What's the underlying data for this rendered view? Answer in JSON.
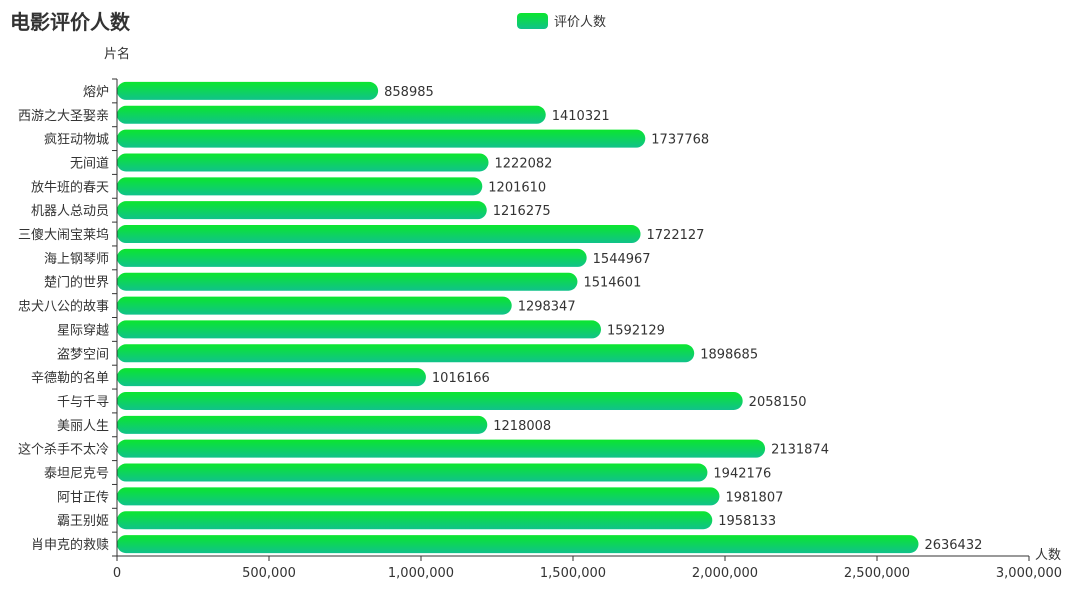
{
  "chart_data": {
    "type": "bar",
    "orientation": "horizontal",
    "title": "电影评价人数",
    "legend": {
      "entries": [
        "评价人数"
      ],
      "position": "top-center"
    },
    "xlabel": "人数",
    "ylabel": "片名",
    "xlim": [
      0,
      3000000
    ],
    "x_ticks": [
      "0",
      "500,000",
      "1,000,000",
      "1,500,000",
      "2,000,000",
      "2,500,000",
      "3,000,000"
    ],
    "categories": [
      "熔炉",
      "西游之大圣娶亲",
      "疯狂动物城",
      "无间道",
      "放牛班的春天",
      "机器人总动员",
      "三傻大闹宝莱坞",
      "海上钢琴师",
      "楚门的世界",
      "忠犬八公的故事",
      "星际穿越",
      "盗梦空间",
      "辛德勒的名单",
      "千与千寻",
      "美丽人生",
      "这个杀手不太冷",
      "泰坦尼克号",
      "阿甘正传",
      "霸王别姬",
      "肖申克的救赎"
    ],
    "series": [
      {
        "name": "评价人数",
        "values": [
          858985,
          1410321,
          1737768,
          1222082,
          1201610,
          1216275,
          1722127,
          1544967,
          1514601,
          1298347,
          1592129,
          1898685,
          1016166,
          2058150,
          1218008,
          2131874,
          1942176,
          1981807,
          1958133,
          2636432
        ]
      }
    ],
    "colors": {
      "bar_top": "#0be62e",
      "bar_bottom": "#10c28a",
      "axis": "#333333"
    }
  }
}
